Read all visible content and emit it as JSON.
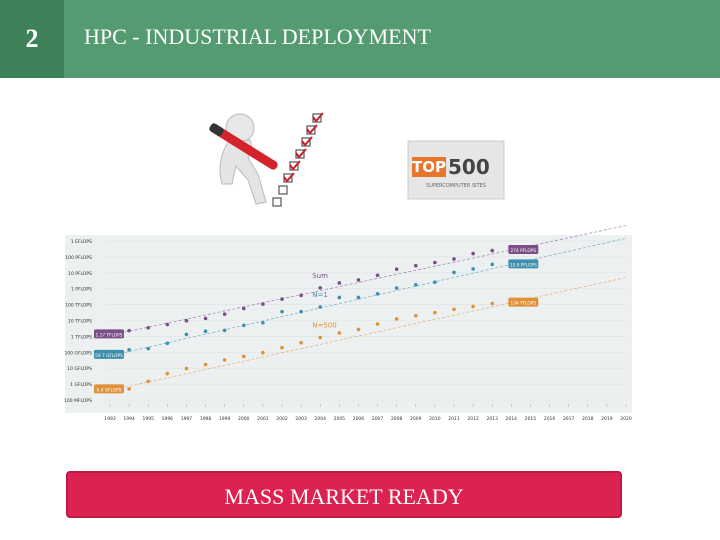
{
  "header": {
    "number": "2",
    "title": "HPC - INDUSTRIAL DEPLOYMENT"
  },
  "logo": {
    "top": "TOP",
    "num": "500",
    "subtitle": "SUPERCOMPUTER SITES"
  },
  "chart_data": {
    "type": "line",
    "log_scale": true,
    "x": [
      1993,
      1994,
      1995,
      1996,
      1997,
      1998,
      1999,
      2000,
      2001,
      2002,
      2003,
      2004,
      2005,
      2006,
      2007,
      2008,
      2009,
      2010,
      2011,
      2012,
      2013,
      2014
    ],
    "xlim": [
      1993,
      2020
    ],
    "xticks": [
      1993,
      1994,
      1995,
      1996,
      1997,
      1998,
      1999,
      2000,
      2001,
      2002,
      2003,
      2004,
      2005,
      2006,
      2007,
      2008,
      2009,
      2010,
      2011,
      2012,
      2013,
      2014,
      2015,
      2016,
      2017,
      2018,
      2019,
      2020
    ],
    "ylim": [
      0.1,
      1000000000
    ],
    "yticks": [
      {
        "value": 1000000000,
        "label": "1 EFLOPS"
      },
      {
        "value": 100000000,
        "label": "100 PFLOPS"
      },
      {
        "value": 10000000,
        "label": "10 PFLOPS"
      },
      {
        "value": 1000000,
        "label": "1 PFLOPS"
      },
      {
        "value": 100000,
        "label": "100 TFLOPS"
      },
      {
        "value": 10000,
        "label": "10 TFLOPS"
      },
      {
        "value": 1000,
        "label": "1 TFLOPS"
      },
      {
        "value": 100,
        "label": "100 GFLOPS"
      },
      {
        "value": 10,
        "label": "10 GFLOPS"
      },
      {
        "value": 1,
        "label": "1 GFLOPS"
      },
      {
        "value": 0.1,
        "label": "100 MFLOPS"
      }
    ],
    "series": [
      {
        "name": "Sum",
        "color": "#7b4e88",
        "start_label": "1.17 TFLOPS",
        "end_label": "274 PFLOPS",
        "values": [
          1170,
          2300,
          3500,
          5600,
          9700,
          13400,
          25000,
          57000,
          108000,
          222000,
          382000,
          1130000,
          2300000,
          3540000,
          6970000,
          16950000,
          27950000,
          44200000,
          74200000,
          162000000,
          250000000,
          274000000
        ]
      },
      {
        "name": "N=1",
        "color": "#3d8fae",
        "start_label": "59.7 GFLOPS",
        "end_label": "33.9 PFLOPS",
        "values": [
          59.7,
          143,
          170,
          368,
          1338,
          2121,
          2379,
          4938,
          7226,
          35860,
          35860,
          70720,
          280600,
          280600,
          478200,
          1105000,
          1759000,
          2566000,
          10510000,
          17590000,
          33860000,
          33860000
        ]
      },
      {
        "name": "N=500",
        "color": "#e0913a",
        "start_label": "0.4 GFLOPS",
        "end_label": "134 TFLOPS",
        "values": [
          0.4,
          0.5,
          1.5,
          4.6,
          9.5,
          17.1,
          33.1,
          55.1,
          94.3,
          195.8,
          403,
          851,
          1646,
          2737,
          5929,
          12640,
          20050,
          31120,
          50940,
          76500,
          117000,
          133700
        ]
      }
    ]
  },
  "button": {
    "label": "MASS MARKET READY"
  }
}
